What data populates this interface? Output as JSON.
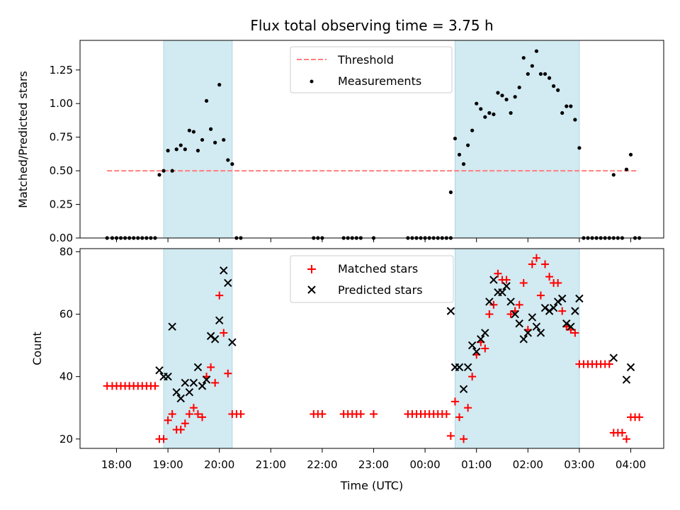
{
  "chart_data": [
    {
      "type": "scatter",
      "title": "Flux total observing time = 3.75 h",
      "ylabel": "Matched/Predicted stars",
      "xlabel": "",
      "ylim": [
        0,
        1.47
      ],
      "yticks": [
        "0.00",
        "0.25",
        "0.50",
        "0.75",
        "1.00",
        "1.25"
      ],
      "ytick_values": [
        0,
        0.25,
        0.5,
        0.75,
        1.0,
        1.25
      ],
      "threshold": 0.5,
      "threshold_range": [
        "17:49",
        "04:09"
      ],
      "shaded_intervals": [
        [
          "18:55",
          "20:15"
        ],
        [
          "00:35",
          "03:00"
        ]
      ],
      "legend_position": "upper center",
      "colors": {
        "threshold": "#ff7f7f",
        "measurements": "#000000",
        "shade": "#add8e6"
      },
      "series": [
        {
          "name": "Measurements",
          "points": [
            [
              "17:49",
              0
            ],
            [
              "17:55",
              0
            ],
            [
              "18:00",
              0
            ],
            [
              "18:05",
              0
            ],
            [
              "18:10",
              0
            ],
            [
              "18:15",
              0
            ],
            [
              "18:20",
              0
            ],
            [
              "18:25",
              0
            ],
            [
              "18:30",
              0
            ],
            [
              "18:35",
              0
            ],
            [
              "18:40",
              0
            ],
            [
              "18:45",
              0
            ],
            [
              "18:50",
              0.47
            ],
            [
              "18:55",
              0.5
            ],
            [
              "19:00",
              0.65
            ],
            [
              "19:05",
              0.5
            ],
            [
              "19:10",
              0.66
            ],
            [
              "19:15",
              0.69
            ],
            [
              "19:20",
              0.66
            ],
            [
              "19:25",
              0.8
            ],
            [
              "19:30",
              0.79
            ],
            [
              "19:35",
              0.65
            ],
            [
              "19:40",
              0.73
            ],
            [
              "19:45",
              1.02
            ],
            [
              "19:50",
              0.81
            ],
            [
              "19:55",
              0.71
            ],
            [
              "20:00",
              1.14
            ],
            [
              "20:05",
              0.73
            ],
            [
              "20:10",
              0.58
            ],
            [
              "20:15",
              0.55
            ],
            [
              "20:20",
              0
            ],
            [
              "20:25",
              0
            ],
            [
              "21:50",
              0
            ],
            [
              "21:55",
              0
            ],
            [
              "22:00",
              0
            ],
            [
              "22:25",
              0
            ],
            [
              "22:30",
              0
            ],
            [
              "22:35",
              0
            ],
            [
              "22:40",
              0
            ],
            [
              "22:45",
              0
            ],
            [
              "23:00",
              0
            ],
            [
              "23:40",
              0
            ],
            [
              "23:45",
              0
            ],
            [
              "23:50",
              0
            ],
            [
              "23:55",
              0
            ],
            [
              "00:00",
              0
            ],
            [
              "00:05",
              0
            ],
            [
              "00:10",
              0
            ],
            [
              "00:15",
              0
            ],
            [
              "00:20",
              0
            ],
            [
              "00:25",
              0
            ],
            [
              "00:30",
              0
            ],
            [
              "00:30",
              0.34
            ],
            [
              "00:35",
              0.74
            ],
            [
              "00:40",
              0.62
            ],
            [
              "00:45",
              0.55
            ],
            [
              "00:50",
              0.69
            ],
            [
              "00:55",
              0.8
            ],
            [
              "01:00",
              1.0
            ],
            [
              "01:05",
              0.96
            ],
            [
              "01:10",
              0.9
            ],
            [
              "01:15",
              0.93
            ],
            [
              "01:20",
              0.92
            ],
            [
              "01:25",
              1.08
            ],
            [
              "01:30",
              1.06
            ],
            [
              "01:35",
              1.03
            ],
            [
              "01:40",
              0.93
            ],
            [
              "01:45",
              1.05
            ],
            [
              "01:50",
              1.12
            ],
            [
              "01:55",
              1.34
            ],
            [
              "02:00",
              1.22
            ],
            [
              "02:05",
              1.28
            ],
            [
              "02:10",
              1.39
            ],
            [
              "02:15",
              1.22
            ],
            [
              "02:20",
              1.22
            ],
            [
              "02:25",
              1.19
            ],
            [
              "02:30",
              1.13
            ],
            [
              "02:35",
              1.1
            ],
            [
              "02:40",
              0.93
            ],
            [
              "02:45",
              0.98
            ],
            [
              "02:50",
              0.98
            ],
            [
              "02:55",
              0.88
            ],
            [
              "03:00",
              0.67
            ],
            [
              "03:05",
              0
            ],
            [
              "03:10",
              0
            ],
            [
              "03:15",
              0
            ],
            [
              "03:20",
              0
            ],
            [
              "03:25",
              0
            ],
            [
              "03:30",
              0
            ],
            [
              "03:35",
              0
            ],
            [
              "03:40",
              0
            ],
            [
              "03:40",
              0.47
            ],
            [
              "03:45",
              0
            ],
            [
              "03:50",
              0
            ],
            [
              "03:55",
              0.51
            ],
            [
              "04:00",
              0.62
            ],
            [
              "04:05",
              0
            ],
            [
              "04:10",
              0
            ]
          ]
        }
      ]
    },
    {
      "type": "scatter",
      "title": "",
      "xlabel": "Time (UTC)",
      "ylabel": "Count",
      "ylim": [
        17,
        81
      ],
      "yticks": [
        "20",
        "40",
        "60",
        "80"
      ],
      "ytick_values": [
        20,
        40,
        60,
        80
      ],
      "xticks": [
        "18:00",
        "19:00",
        "20:00",
        "21:00",
        "22:00",
        "23:00",
        "00:00",
        "01:00",
        "02:00",
        "03:00",
        "04:00"
      ],
      "shaded_intervals": [
        [
          "18:55",
          "20:15"
        ],
        [
          "00:35",
          "03:00"
        ]
      ],
      "legend_position": "upper center",
      "colors": {
        "matched": "#ff0000",
        "predicted": "#000000"
      },
      "series": [
        {
          "name": "Matched stars",
          "points": [
            [
              "17:49",
              37
            ],
            [
              "17:55",
              37
            ],
            [
              "18:00",
              37
            ],
            [
              "18:05",
              37
            ],
            [
              "18:10",
              37
            ],
            [
              "18:15",
              37
            ],
            [
              "18:20",
              37
            ],
            [
              "18:25",
              37
            ],
            [
              "18:30",
              37
            ],
            [
              "18:35",
              37
            ],
            [
              "18:40",
              37
            ],
            [
              "18:45",
              37
            ],
            [
              "18:50",
              20
            ],
            [
              "18:55",
              20
            ],
            [
              "19:00",
              26
            ],
            [
              "19:05",
              28
            ],
            [
              "19:10",
              23
            ],
            [
              "19:15",
              23
            ],
            [
              "19:20",
              25
            ],
            [
              "19:25",
              28
            ],
            [
              "19:30",
              30
            ],
            [
              "19:35",
              28
            ],
            [
              "19:40",
              27
            ],
            [
              "19:45",
              40
            ],
            [
              "19:50",
              43
            ],
            [
              "19:55",
              38
            ],
            [
              "20:00",
              66
            ],
            [
              "20:05",
              54
            ],
            [
              "20:10",
              41
            ],
            [
              "20:15",
              28
            ],
            [
              "20:20",
              28
            ],
            [
              "20:25",
              28
            ],
            [
              "21:50",
              28
            ],
            [
              "21:55",
              28
            ],
            [
              "22:00",
              28
            ],
            [
              "22:25",
              28
            ],
            [
              "22:30",
              28
            ],
            [
              "22:35",
              28
            ],
            [
              "22:40",
              28
            ],
            [
              "22:45",
              28
            ],
            [
              "23:00",
              28
            ],
            [
              "23:40",
              28
            ],
            [
              "23:45",
              28
            ],
            [
              "23:50",
              28
            ],
            [
              "23:55",
              28
            ],
            [
              "00:00",
              28
            ],
            [
              "00:05",
              28
            ],
            [
              "00:10",
              28
            ],
            [
              "00:15",
              28
            ],
            [
              "00:20",
              28
            ],
            [
              "00:25",
              28
            ],
            [
              "00:30",
              21
            ],
            [
              "00:35",
              32
            ],
            [
              "00:40",
              27
            ],
            [
              "00:45",
              20
            ],
            [
              "00:50",
              30
            ],
            [
              "00:55",
              40
            ],
            [
              "01:00",
              47
            ],
            [
              "01:05",
              51
            ],
            [
              "01:10",
              49
            ],
            [
              "01:15",
              60
            ],
            [
              "01:20",
              63
            ],
            [
              "01:25",
              73
            ],
            [
              "01:30",
              71
            ],
            [
              "01:35",
              71
            ],
            [
              "01:40",
              60
            ],
            [
              "01:45",
              61
            ],
            [
              "01:50",
              63
            ],
            [
              "01:55",
              70
            ],
            [
              "02:00",
              55
            ],
            [
              "02:05",
              76
            ],
            [
              "02:10",
              78
            ],
            [
              "02:15",
              66
            ],
            [
              "02:20",
              76
            ],
            [
              "02:25",
              72
            ],
            [
              "02:30",
              70
            ],
            [
              "02:35",
              70
            ],
            [
              "02:40",
              61
            ],
            [
              "02:45",
              56
            ],
            [
              "02:50",
              55
            ],
            [
              "02:55",
              54
            ],
            [
              "03:00",
              44
            ],
            [
              "03:05",
              44
            ],
            [
              "03:10",
              44
            ],
            [
              "03:15",
              44
            ],
            [
              "03:20",
              44
            ],
            [
              "03:25",
              44
            ],
            [
              "03:30",
              44
            ],
            [
              "03:35",
              44
            ],
            [
              "03:40",
              22
            ],
            [
              "03:45",
              22
            ],
            [
              "03:50",
              22
            ],
            [
              "03:55",
              20
            ],
            [
              "04:00",
              27
            ],
            [
              "04:05",
              27
            ],
            [
              "04:10",
              27
            ]
          ]
        },
        {
          "name": "Predicted stars",
          "points": [
            [
              "18:50",
              42
            ],
            [
              "18:55",
              40
            ],
            [
              "19:00",
              40
            ],
            [
              "19:05",
              56
            ],
            [
              "19:10",
              35
            ],
            [
              "19:15",
              33
            ],
            [
              "19:20",
              38
            ],
            [
              "19:25",
              35
            ],
            [
              "19:30",
              38
            ],
            [
              "19:35",
              43
            ],
            [
              "19:40",
              37
            ],
            [
              "19:45",
              39
            ],
            [
              "19:50",
              53
            ],
            [
              "19:55",
              52
            ],
            [
              "20:00",
              58
            ],
            [
              "20:05",
              74
            ],
            [
              "20:10",
              70
            ],
            [
              "20:15",
              51
            ],
            [
              "00:30",
              61
            ],
            [
              "00:35",
              43
            ],
            [
              "00:40",
              43
            ],
            [
              "00:45",
              36
            ],
            [
              "00:50",
              43
            ],
            [
              "00:55",
              50
            ],
            [
              "01:00",
              48
            ],
            [
              "01:05",
              52
            ],
            [
              "01:10",
              54
            ],
            [
              "01:15",
              64
            ],
            [
              "01:20",
              71
            ],
            [
              "01:25",
              67
            ],
            [
              "01:30",
              67
            ],
            [
              "01:35",
              69
            ],
            [
              "01:40",
              64
            ],
            [
              "01:45",
              60
            ],
            [
              "01:50",
              57
            ],
            [
              "01:55",
              52
            ],
            [
              "02:00",
              54
            ],
            [
              "02:05",
              59
            ],
            [
              "02:10",
              56
            ],
            [
              "02:15",
              54
            ],
            [
              "02:20",
              62
            ],
            [
              "02:25",
              61
            ],
            [
              "02:30",
              62
            ],
            [
              "02:35",
              64
            ],
            [
              "02:40",
              65
            ],
            [
              "02:45",
              57
            ],
            [
              "02:50",
              56
            ],
            [
              "02:55",
              61
            ],
            [
              "03:00",
              65
            ],
            [
              "03:40",
              46
            ],
            [
              "03:55",
              39
            ],
            [
              "04:00",
              43
            ]
          ]
        }
      ]
    }
  ]
}
